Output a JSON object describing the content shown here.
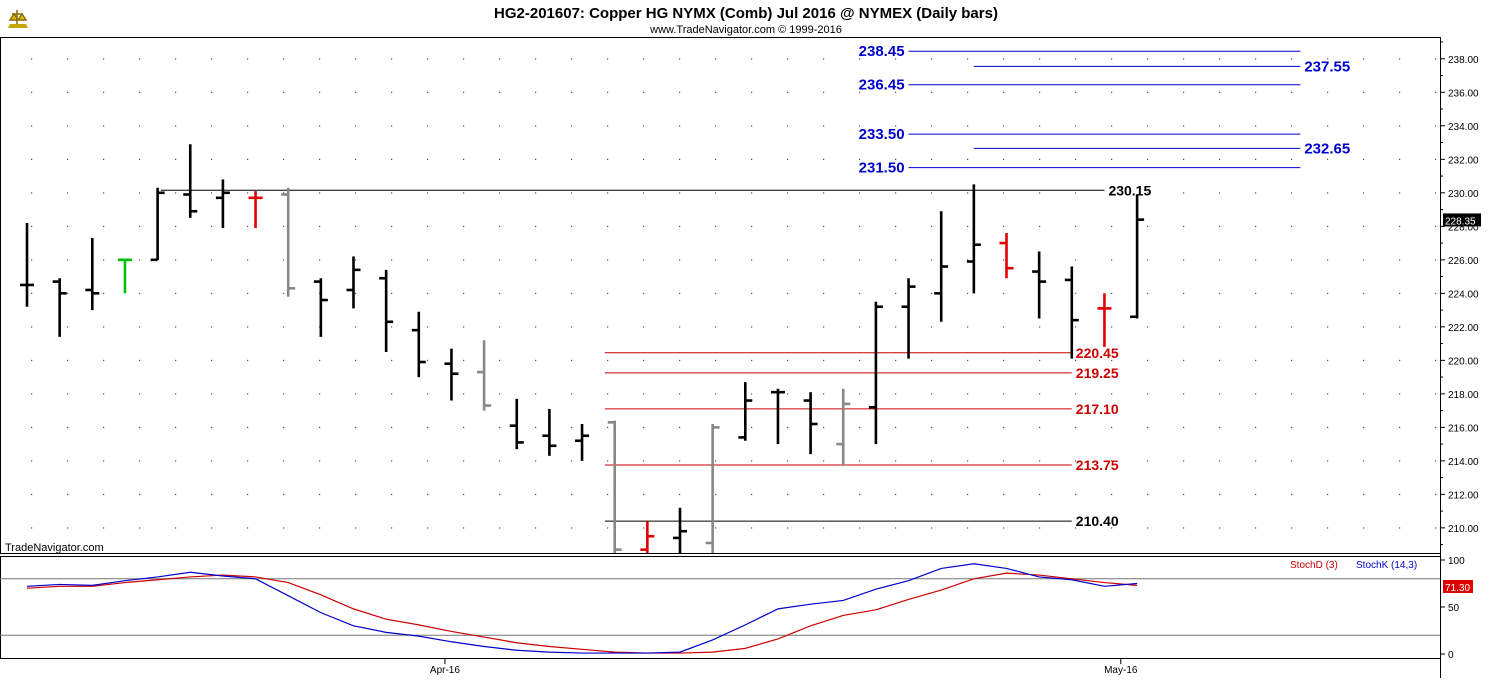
{
  "header": {
    "title": "HG2-201607:  Copper HG NYMX (Comb) Jul 2016 @ NYMEX  (Daily bars)",
    "subtitle": "www.TradeNavigator.com © 1999-2016",
    "watermark": "TradeNavigator.com",
    "logo_icon": "trade-navigator-logo-icon"
  },
  "chart_data": [
    {
      "type": "ohlc",
      "title": "HG2-201607:  Copper HG NYMX (Comb) Jul 2016 @ NYMEX  (Daily bars)",
      "ylim": [
        208.5,
        239.3
      ],
      "y_ticks": [
        "238.00",
        "236.00",
        "234.00",
        "232.00",
        "230.00",
        "228.00",
        "226.00",
        "224.00",
        "222.00",
        "220.00",
        "218.00",
        "216.00",
        "214.00",
        "212.00",
        "210.00"
      ],
      "x_ticks": [
        "Apr-16",
        "May-16"
      ],
      "last_price": "228.35",
      "colors": {
        "default": "#000000",
        "down": "#888888",
        "up": "#00c000",
        "doji": "#e00000"
      },
      "bars": [
        {
          "o": 224.5,
          "h": 228.2,
          "l": 223.2,
          "c": 224.5,
          "color": "default"
        },
        {
          "o": 224.7,
          "h": 224.9,
          "l": 221.4,
          "c": 224.0,
          "color": "default"
        },
        {
          "o": 224.2,
          "h": 227.3,
          "l": 223.0,
          "c": 224.0,
          "color": "default"
        },
        {
          "o": 226.0,
          "h": 226.0,
          "l": 224.0,
          "c": 226.0,
          "color": "up"
        },
        {
          "o": 226.0,
          "h": 230.3,
          "l": 226.0,
          "c": 230.0,
          "color": "default"
        },
        {
          "o": 229.9,
          "h": 232.9,
          "l": 228.5,
          "c": 228.9,
          "color": "default"
        },
        {
          "o": 229.7,
          "h": 230.8,
          "l": 227.9,
          "c": 230.0,
          "color": "default"
        },
        {
          "o": 229.7,
          "h": 230.1,
          "l": 227.9,
          "c": 229.7,
          "color": "doji"
        },
        {
          "o": 229.9,
          "h": 230.3,
          "l": 223.8,
          "c": 224.3,
          "color": "down"
        },
        {
          "o": 224.7,
          "h": 224.9,
          "l": 221.4,
          "c": 223.6,
          "color": "default"
        },
        {
          "o": 224.2,
          "h": 226.2,
          "l": 223.1,
          "c": 225.4,
          "color": "default"
        },
        {
          "o": 224.9,
          "h": 225.4,
          "l": 220.5,
          "c": 222.3,
          "color": "default"
        },
        {
          "o": 221.8,
          "h": 222.9,
          "l": 219.0,
          "c": 219.9,
          "color": "default"
        },
        {
          "o": 219.8,
          "h": 220.7,
          "l": 217.6,
          "c": 219.2,
          "color": "default"
        },
        {
          "o": 219.3,
          "h": 221.2,
          "l": 217.0,
          "c": 217.3,
          "color": "down"
        },
        {
          "o": 216.1,
          "h": 217.7,
          "l": 214.7,
          "c": 215.1,
          "color": "default"
        },
        {
          "o": 215.5,
          "h": 217.1,
          "l": 214.3,
          "c": 214.9,
          "color": "default"
        },
        {
          "o": 215.2,
          "h": 216.2,
          "l": 214.0,
          "c": 215.5,
          "color": "default"
        },
        {
          "o": 216.3,
          "h": 216.4,
          "l": 208.5,
          "c": 208.7,
          "color": "down"
        },
        {
          "o": 208.7,
          "h": 210.4,
          "l": 208.5,
          "c": 209.5,
          "color": "doji"
        },
        {
          "o": 209.4,
          "h": 211.2,
          "l": 208.5,
          "c": 209.8,
          "color": "default"
        },
        {
          "o": 209.1,
          "h": 216.2,
          "l": 208.5,
          "c": 216.0,
          "color": "down"
        },
        {
          "o": 215.4,
          "h": 218.7,
          "l": 215.2,
          "c": 217.6,
          "color": "default"
        },
        {
          "o": 218.1,
          "h": 218.3,
          "l": 215.0,
          "c": 218.1,
          "color": "default"
        },
        {
          "o": 217.6,
          "h": 218.1,
          "l": 214.4,
          "c": 216.2,
          "color": "default"
        },
        {
          "o": 215.0,
          "h": 218.3,
          "l": 213.7,
          "c": 217.4,
          "color": "down"
        },
        {
          "o": 217.2,
          "h": 223.5,
          "l": 215.0,
          "c": 223.2,
          "color": "default"
        },
        {
          "o": 223.2,
          "h": 224.9,
          "l": 220.1,
          "c": 224.4,
          "color": "default"
        },
        {
          "o": 224.0,
          "h": 228.9,
          "l": 222.3,
          "c": 225.6,
          "color": "default"
        },
        {
          "o": 225.9,
          "h": 230.5,
          "l": 224.0,
          "c": 226.9,
          "color": "default"
        },
        {
          "o": 227.0,
          "h": 227.6,
          "l": 224.9,
          "c": 225.5,
          "color": "doji"
        },
        {
          "o": 225.3,
          "h": 226.5,
          "l": 222.5,
          "c": 224.7,
          "color": "default"
        },
        {
          "o": 224.8,
          "h": 225.6,
          "l": 220.1,
          "c": 222.4,
          "color": "default"
        },
        {
          "o": 223.1,
          "h": 224.0,
          "l": 220.8,
          "c": 223.1,
          "color": "doji"
        },
        {
          "o": 222.6,
          "h": 229.9,
          "l": 222.5,
          "c": 228.4,
          "color": "default"
        }
      ],
      "levels": [
        {
          "label": "238.45",
          "value": 238.45,
          "color": "#0000cc",
          "side": "left",
          "from_bar": 27.0,
          "to_bar": 39.0
        },
        {
          "label": "237.55",
          "value": 237.55,
          "color": "#0000cc",
          "side": "right",
          "from_bar": 29.0,
          "to_bar": 39.0
        },
        {
          "label": "236.45",
          "value": 236.45,
          "color": "#0000cc",
          "side": "left",
          "from_bar": 27.0,
          "to_bar": 39.0
        },
        {
          "label": "233.50",
          "value": 233.5,
          "color": "#0000cc",
          "side": "left",
          "from_bar": 27.0,
          "to_bar": 39.0
        },
        {
          "label": "232.65",
          "value": 232.65,
          "color": "#0000cc",
          "side": "right",
          "from_bar": 29.0,
          "to_bar": 39.0
        },
        {
          "label": "231.50",
          "value": 231.5,
          "color": "#0000cc",
          "side": "left",
          "from_bar": 27.0,
          "to_bar": 39.0
        },
        {
          "label": "230.15",
          "value": 230.15,
          "color": "#000000",
          "side": "right",
          "from_bar": 4.1,
          "to_bar": 33.0
        },
        {
          "label": "220.45",
          "value": 220.45,
          "color": "#cc0000",
          "side": "right",
          "from_bar": 17.7,
          "to_bar": 32.0
        },
        {
          "label": "219.25",
          "value": 219.25,
          "color": "#cc0000",
          "side": "right",
          "from_bar": 17.7,
          "to_bar": 32.0
        },
        {
          "label": "217.10",
          "value": 217.1,
          "color": "#cc0000",
          "side": "right",
          "from_bar": 17.7,
          "to_bar": 32.0
        },
        {
          "label": "213.75",
          "value": 213.75,
          "color": "#cc0000",
          "side": "right",
          "from_bar": 17.7,
          "to_bar": 32.0
        },
        {
          "label": "210.40",
          "value": 210.4,
          "color": "#000000",
          "side": "right",
          "from_bar": 17.7,
          "to_bar": 32.0
        }
      ]
    },
    {
      "type": "line",
      "indicator": "Stochastic",
      "ylim": [
        0,
        100
      ],
      "y_ticks": [
        "100",
        "50",
        "0"
      ],
      "reference_lines": [
        80,
        20
      ],
      "last_value": "71.30",
      "series": [
        {
          "name": "StochD (3)",
          "color": "#cc0000",
          "values": [
            70,
            72,
            72,
            76,
            79,
            82,
            84,
            82,
            76,
            63,
            48,
            37,
            31,
            24,
            18,
            12,
            8,
            5,
            2,
            1,
            1,
            2,
            6,
            16,
            30,
            41,
            47,
            58,
            68,
            80,
            86,
            84,
            80,
            76,
            73
          ]
        },
        {
          "name": "StochK (14,3)",
          "color": "#0000cc",
          "values": [
            72,
            74,
            73,
            78,
            82,
            87,
            83,
            80,
            62,
            44,
            30,
            23,
            19,
            13,
            8,
            4,
            2,
            1,
            1,
            1,
            2,
            15,
            31,
            48,
            53,
            57,
            69,
            78,
            91,
            96,
            91,
            82,
            79,
            72,
            75
          ]
        }
      ]
    }
  ]
}
